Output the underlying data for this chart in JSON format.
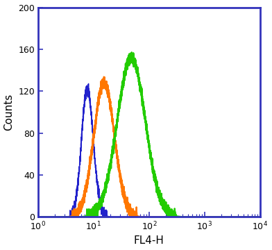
{
  "title": "",
  "xlabel": "FL4-H",
  "ylabel": "Counts",
  "ylim": [
    0,
    200
  ],
  "yticks": [
    0,
    40,
    80,
    120,
    160,
    200
  ],
  "background_color": "#ffffff",
  "border_color": "#3333bb",
  "line_colors": {
    "blue": "#2222cc",
    "orange": "#ff7700",
    "green": "#22cc00"
  },
  "curves": {
    "blue": {
      "mu_log": 0.82,
      "sigma_log": 0.13,
      "peak": 122,
      "skew": 1.0,
      "noise": 2.5
    },
    "orange": {
      "mu_log": 1.12,
      "sigma_log": 0.2,
      "peak": 128,
      "skew": 0.5,
      "noise": 2.5
    },
    "green": {
      "mu_log": 1.62,
      "sigma_log": 0.26,
      "peak": 152,
      "skew": 0.3,
      "noise": 2.5
    }
  },
  "figsize": [
    3.92,
    3.6
  ],
  "dpi": 100
}
